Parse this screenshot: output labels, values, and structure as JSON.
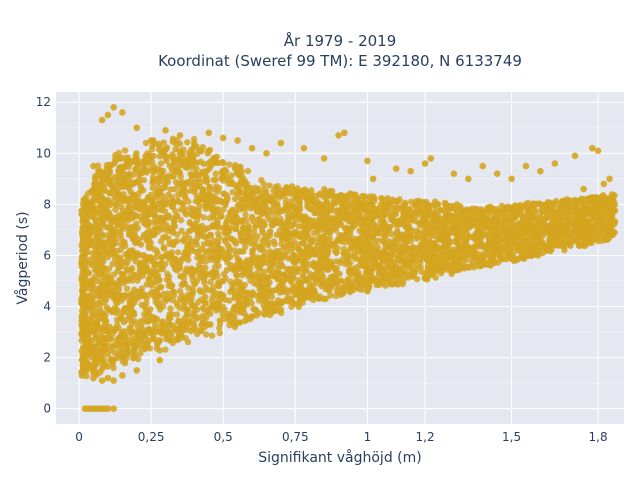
{
  "chart_data": {
    "type": "scatter",
    "title": "År 1979 - 2019",
    "subtitle": "Koordinat (Sweref 99 TM): E 392180, N 6133749",
    "xlabel": "Signifikant våghöjd (m)",
    "ylabel": "Vågperiod (s)",
    "xlim": [
      -0.08,
      1.89
    ],
    "ylim": [
      -0.6,
      12.4
    ],
    "x_ticks": [
      0,
      0.25,
      0.5,
      0.75,
      1,
      1.2,
      1.5,
      1.8
    ],
    "x_tick_labels": [
      "0",
      "0,25",
      "0,5",
      "0,75",
      "1",
      "1,2",
      "1,5",
      "1,8"
    ],
    "y_ticks": [
      0,
      2,
      4,
      6,
      8,
      10,
      12
    ],
    "y_tick_labels": [
      "0",
      "2",
      "4",
      "6",
      "8",
      "10",
      "12"
    ],
    "grid": true,
    "marker_color": "#d4a520",
    "plot_bgcolor": "#e5e8f0",
    "series": [
      {
        "points": [
          [
            0.02,
            0
          ],
          [
            0.03,
            0
          ],
          [
            0.04,
            0
          ],
          [
            0.05,
            0
          ],
          [
            0.06,
            0
          ],
          [
            0.07,
            0
          ],
          [
            0.08,
            0
          ],
          [
            0.09,
            0
          ],
          [
            0.1,
            0
          ],
          [
            0.12,
            0
          ],
          [
            0.01,
            1.3
          ],
          [
            0.02,
            1.5
          ],
          [
            0.03,
            1.7
          ],
          [
            0.05,
            1.2
          ],
          [
            0.08,
            1.1
          ],
          [
            0.1,
            1.2
          ],
          [
            0.12,
            1.1
          ],
          [
            0.15,
            1.3
          ],
          [
            0.2,
            1.5
          ],
          [
            0.28,
            1.9
          ],
          [
            0.1,
            11.5
          ],
          [
            0.12,
            11.8
          ],
          [
            0.15,
            11.6
          ],
          [
            0.08,
            11.3
          ],
          [
            0.2,
            11.0
          ],
          [
            0.3,
            10.9
          ],
          [
            0.45,
            10.8
          ],
          [
            0.5,
            10.6
          ],
          [
            0.55,
            10.5
          ],
          [
            0.6,
            10.2
          ],
          [
            0.05,
            9.5
          ],
          [
            0.25,
            10.5
          ],
          [
            0.35,
            10.7
          ],
          [
            0.4,
            10.3
          ],
          [
            0.65,
            10.0
          ],
          [
            0.7,
            10.4
          ],
          [
            0.78,
            10.2
          ],
          [
            0.85,
            9.8
          ],
          [
            0.9,
            10.7
          ],
          [
            0.92,
            10.8
          ],
          [
            1.0,
            9.7
          ],
          [
            1.02,
            9.0
          ],
          [
            1.1,
            9.4
          ],
          [
            1.15,
            9.3
          ],
          [
            1.2,
            9.6
          ],
          [
            1.22,
            9.8
          ],
          [
            1.3,
            9.2
          ],
          [
            1.35,
            9.0
          ],
          [
            1.4,
            9.5
          ],
          [
            1.45,
            9.2
          ],
          [
            1.5,
            9.0
          ],
          [
            1.55,
            9.5
          ],
          [
            1.6,
            9.3
          ],
          [
            1.65,
            9.6
          ],
          [
            1.72,
            9.9
          ],
          [
            1.78,
            10.2
          ],
          [
            1.8,
            10.1
          ],
          [
            1.75,
            8.6
          ],
          [
            1.82,
            8.8
          ],
          [
            1.84,
            9.0
          ],
          [
            0.3,
            8.0
          ],
          [
            0.4,
            7.8
          ],
          [
            0.6,
            7.5
          ],
          [
            0.8,
            7.2
          ],
          [
            1.0,
            7.3
          ],
          [
            1.2,
            7.2
          ],
          [
            1.4,
            7.0
          ],
          [
            1.6,
            7.5
          ],
          [
            1.7,
            7.8
          ],
          [
            1.8,
            8.2
          ],
          [
            0.2,
            6.0
          ],
          [
            0.35,
            5.5
          ],
          [
            0.5,
            5.0
          ],
          [
            0.7,
            4.8
          ],
          [
            0.9,
            5.0
          ],
          [
            1.1,
            5.3
          ],
          [
            1.3,
            5.6
          ],
          [
            1.5,
            6.0
          ],
          [
            1.65,
            6.4
          ],
          [
            1.8,
            7.0
          ],
          [
            0.15,
            3.0
          ],
          [
            0.25,
            3.0
          ],
          [
            0.35,
            2.9
          ],
          [
            0.45,
            3.3
          ],
          [
            0.55,
            3.8
          ],
          [
            0.65,
            4.0
          ],
          [
            0.75,
            4.1
          ],
          [
            0.85,
            4.3
          ],
          [
            1.0,
            4.6
          ],
          [
            1.2,
            5.1
          ]
        ]
      }
    ]
  }
}
